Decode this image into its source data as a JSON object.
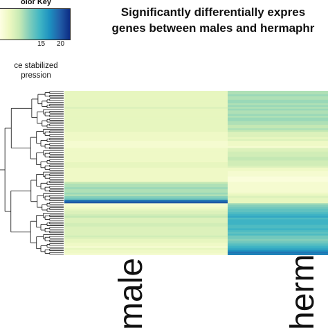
{
  "chart_data": {
    "type": "heatmap",
    "title_lines": [
      "Significantly differentially expres",
      "genes between males and hermaphr"
    ],
    "columns": [
      "male",
      "herm"
    ],
    "color_key": {
      "title": "olor Key",
      "ticks": [
        15,
        20
      ],
      "xlabel_lines": [
        "ce stabilized",
        "pression"
      ],
      "range": [
        0,
        24
      ],
      "colors": [
        "#ffffe5",
        "#edf8c1",
        "#c7e9b4",
        "#7fcdbb",
        "#41b6c4",
        "#1d91c0",
        "#225ea8",
        "#0c2c84"
      ]
    },
    "rows": {
      "male": [
        4,
        4,
        4,
        4,
        4,
        4,
        4,
        4,
        4,
        5,
        4,
        4,
        4,
        4,
        4,
        4,
        4,
        4,
        4,
        4,
        4,
        4,
        4,
        3,
        3,
        3,
        3,
        3,
        2,
        2,
        2,
        2,
        3,
        3,
        3,
        3,
        3,
        3,
        3,
        3,
        4,
        4,
        4,
        3,
        3,
        3,
        3,
        3,
        3,
        3,
        3,
        7,
        8,
        8,
        9,
        8,
        8,
        9,
        8,
        10,
        11,
        19,
        21,
        2,
        2,
        3,
        4,
        5,
        5,
        6,
        7,
        5,
        5,
        5,
        6,
        6,
        5,
        5,
        5,
        5,
        5,
        6,
        5,
        4,
        4,
        3,
        3,
        2,
        4,
        3,
        3,
        2
      ],
      "herm": [
        8,
        8,
        9,
        8,
        8,
        9,
        9,
        8,
        9,
        8,
        9,
        8,
        8,
        9,
        8,
        9,
        9,
        8,
        8,
        7,
        7,
        8,
        7,
        5,
        5,
        5,
        4,
        5,
        3,
        3,
        3,
        2,
        5,
        5,
        6,
        6,
        6,
        7,
        7,
        6,
        6,
        6,
        5,
        3,
        3,
        2,
        2,
        2,
        1,
        1,
        1,
        2,
        2,
        2,
        2,
        2,
        2,
        3,
        4,
        5,
        4,
        4,
        4,
        9,
        10,
        11,
        12,
        12,
        13,
        14,
        15,
        13,
        14,
        14,
        14,
        13,
        13,
        14,
        13,
        12,
        13,
        11,
        11,
        10,
        11,
        12,
        13,
        14,
        15,
        17,
        19,
        18
      ]
    }
  }
}
